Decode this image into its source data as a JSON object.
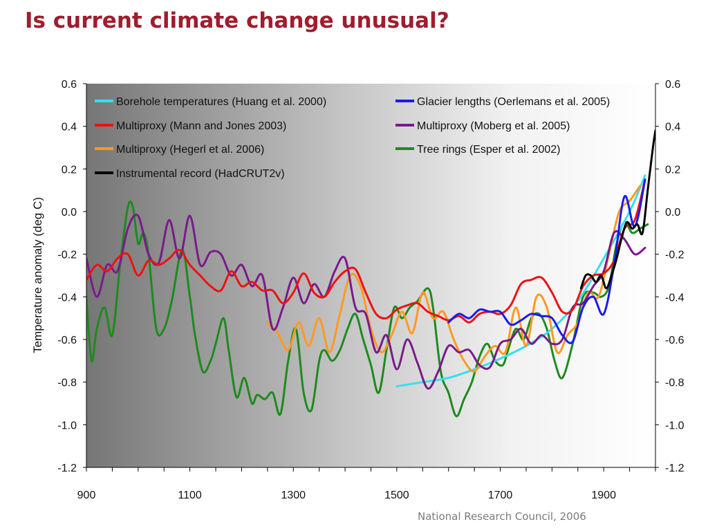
{
  "slide": {
    "title": "Is current climate change unusual?",
    "source": "National Research Council, 2006"
  },
  "chart_data": {
    "type": "line",
    "title": "",
    "xlabel": "",
    "ylabel": "Temperature anomaly (deg C)",
    "xlim": [
      900,
      2000
    ],
    "ylim": [
      -1.2,
      0.6
    ],
    "x_ticks": [
      "900",
      "1100",
      "1300",
      "1500",
      "1700",
      "1900"
    ],
    "x_tick_values": [
      900,
      1100,
      1300,
      1500,
      1700,
      1900
    ],
    "y_ticks": [
      "0.6",
      "0.4",
      "0.2",
      "0.0",
      "-0.2",
      "-0.4",
      "-0.6",
      "-0.8",
      "-1.0",
      "-1.2"
    ],
    "y_tick_values": [
      0.6,
      0.4,
      0.2,
      0.0,
      -0.2,
      -0.4,
      -0.6,
      -0.8,
      -1.0,
      -1.2
    ],
    "right_y_ticks": [
      "0.6",
      "0.4",
      "0.2",
      "0.0",
      "-0.2",
      "-0.4",
      "-0.6",
      "-0.8",
      "-1.0",
      "-1.2"
    ],
    "grid": false,
    "legend_position": "top",
    "background": "gradient dark-gray to white",
    "series": [
      {
        "name": "Borehole temperatures (Huang et al. 2000)",
        "color": "#33e0f0",
        "x": [
          1500,
          1550,
          1600,
          1650,
          1700,
          1750,
          1800,
          1850,
          1900,
          1950,
          1980
        ],
        "y": [
          -0.82,
          -0.8,
          -0.78,
          -0.74,
          -0.69,
          -0.63,
          -0.55,
          -0.42,
          -0.22,
          0.0,
          0.17
        ]
      },
      {
        "name": "Glacier lengths (Oerlemans et al. 2005)",
        "color": "#1a1aee",
        "x": [
          1600,
          1620,
          1640,
          1660,
          1680,
          1700,
          1720,
          1740,
          1760,
          1780,
          1800,
          1820,
          1840,
          1860,
          1880,
          1900,
          1920,
          1940,
          1960,
          1980
        ],
        "y": [
          -0.52,
          -0.48,
          -0.5,
          -0.46,
          -0.47,
          -0.47,
          -0.53,
          -0.51,
          -0.48,
          -0.49,
          -0.5,
          -0.58,
          -0.61,
          -0.45,
          -0.4,
          -0.48,
          -0.25,
          0.07,
          -0.07,
          0.15
        ]
      },
      {
        "name": "Multiproxy (Mann and Jones 2003)",
        "color": "#ee1111",
        "x": [
          900,
          920,
          940,
          960,
          980,
          1000,
          1020,
          1040,
          1060,
          1080,
          1100,
          1120,
          1140,
          1160,
          1180,
          1200,
          1220,
          1240,
          1260,
          1280,
          1300,
          1320,
          1340,
          1360,
          1380,
          1400,
          1420,
          1440,
          1460,
          1480,
          1500,
          1520,
          1540,
          1560,
          1580,
          1600,
          1620,
          1640,
          1660,
          1680,
          1700,
          1720,
          1740,
          1760,
          1780,
          1800,
          1820,
          1840,
          1860,
          1880,
          1900,
          1920,
          1940,
          1960,
          1980
        ],
        "y": [
          -0.32,
          -0.25,
          -0.28,
          -0.22,
          -0.2,
          -0.3,
          -0.23,
          -0.25,
          -0.22,
          -0.18,
          -0.25,
          -0.3,
          -0.35,
          -0.37,
          -0.28,
          -0.35,
          -0.33,
          -0.37,
          -0.37,
          -0.43,
          -0.38,
          -0.29,
          -0.38,
          -0.4,
          -0.33,
          -0.28,
          -0.27,
          -0.38,
          -0.48,
          -0.5,
          -0.46,
          -0.44,
          -0.43,
          -0.47,
          -0.49,
          -0.51,
          -0.49,
          -0.52,
          -0.48,
          -0.47,
          -0.48,
          -0.44,
          -0.34,
          -0.32,
          -0.31,
          -0.38,
          -0.47,
          -0.46,
          -0.35,
          -0.3,
          -0.29,
          -0.23,
          -0.08,
          -0.04,
          0.15
        ]
      },
      {
        "name": "Multiproxy (Moberg et al. 2005)",
        "color": "#7a1a8a",
        "x": [
          900,
          920,
          940,
          960,
          980,
          1000,
          1020,
          1040,
          1060,
          1080,
          1100,
          1120,
          1140,
          1160,
          1180,
          1200,
          1220,
          1240,
          1260,
          1280,
          1300,
          1320,
          1340,
          1360,
          1380,
          1400,
          1420,
          1440,
          1460,
          1480,
          1500,
          1520,
          1540,
          1560,
          1580,
          1600,
          1620,
          1640,
          1660,
          1680,
          1700,
          1720,
          1740,
          1760,
          1780,
          1800,
          1820,
          1840,
          1860,
          1880,
          1900,
          1920,
          1940,
          1960,
          1980
        ],
        "y": [
          -0.22,
          -0.4,
          -0.25,
          -0.28,
          -0.08,
          -0.02,
          -0.2,
          -0.24,
          -0.04,
          -0.22,
          -0.02,
          -0.25,
          -0.19,
          -0.2,
          -0.3,
          -0.25,
          -0.35,
          -0.3,
          -0.55,
          -0.45,
          -0.31,
          -0.43,
          -0.34,
          -0.4,
          -0.28,
          -0.22,
          -0.45,
          -0.48,
          -0.66,
          -0.58,
          -0.74,
          -0.6,
          -0.71,
          -0.83,
          -0.75,
          -0.63,
          -0.66,
          -0.65,
          -0.72,
          -0.73,
          -0.62,
          -0.6,
          -0.55,
          -0.62,
          -0.58,
          -0.62,
          -0.6,
          -0.45,
          -0.43,
          -0.35,
          -0.28,
          -0.1,
          -0.13,
          -0.2,
          -0.17
        ]
      },
      {
        "name": "Multiproxy (Hegerl et al. 2006)",
        "color": "#ff9922",
        "x": [
          1250,
          1270,
          1290,
          1310,
          1330,
          1350,
          1370,
          1390,
          1410,
          1430,
          1450,
          1470,
          1490,
          1510,
          1530,
          1550,
          1570,
          1590,
          1610,
          1630,
          1650,
          1670,
          1690,
          1710,
          1730,
          1750,
          1770,
          1790,
          1810,
          1830,
          1850,
          1870,
          1890,
          1910,
          1930,
          1950,
          1970
        ],
        "y": [
          -0.52,
          -0.57,
          -0.65,
          -0.52,
          -0.63,
          -0.5,
          -0.66,
          -0.48,
          -0.3,
          -0.35,
          -0.55,
          -0.66,
          -0.58,
          -0.47,
          -0.57,
          -0.38,
          -0.5,
          -0.47,
          -0.6,
          -0.7,
          -0.75,
          -0.68,
          -0.63,
          -0.66,
          -0.45,
          -0.63,
          -0.4,
          -0.45,
          -0.66,
          -0.58,
          -0.52,
          -0.38,
          -0.4,
          -0.2,
          0.0,
          0.05,
          0.12
        ]
      },
      {
        "name": "Tree rings (Esper et al. 2002)",
        "color": "#1e8a1e",
        "x": [
          900,
          910,
          920,
          935,
          950,
          965,
          980,
          990,
          1000,
          1010,
          1020,
          1035,
          1050,
          1065,
          1085,
          1100,
          1110,
          1125,
          1140,
          1150,
          1165,
          1175,
          1190,
          1205,
          1220,
          1230,
          1245,
          1260,
          1275,
          1290,
          1305,
          1320,
          1335,
          1350,
          1360,
          1375,
          1390,
          1405,
          1420,
          1435,
          1450,
          1465,
          1480,
          1495,
          1510,
          1525,
          1540,
          1560,
          1570,
          1585,
          1600,
          1615,
          1630,
          1645,
          1660,
          1675,
          1690,
          1705,
          1715,
          1730,
          1745,
          1760,
          1775,
          1790,
          1805,
          1820,
          1840,
          1860,
          1880,
          1895,
          1910,
          1925,
          1940,
          1955,
          1970,
          1985
        ],
        "y": [
          -0.4,
          -0.7,
          -0.55,
          -0.45,
          -0.58,
          -0.25,
          0.02,
          0.02,
          -0.15,
          -0.1,
          -0.2,
          -0.55,
          -0.55,
          -0.42,
          -0.18,
          -0.4,
          -0.58,
          -0.75,
          -0.7,
          -0.62,
          -0.5,
          -0.65,
          -0.87,
          -0.78,
          -0.9,
          -0.86,
          -0.88,
          -0.85,
          -0.95,
          -0.7,
          -0.55,
          -0.85,
          -0.93,
          -0.7,
          -0.65,
          -0.7,
          -0.65,
          -0.55,
          -0.48,
          -0.6,
          -0.72,
          -0.85,
          -0.65,
          -0.45,
          -0.5,
          -0.45,
          -0.42,
          -0.36,
          -0.45,
          -0.75,
          -0.85,
          -0.96,
          -0.88,
          -0.8,
          -0.68,
          -0.62,
          -0.7,
          -0.72,
          -0.65,
          -0.55,
          -0.6,
          -0.5,
          -0.48,
          -0.55,
          -0.7,
          -0.78,
          -0.62,
          -0.4,
          -0.38,
          -0.4,
          -0.35,
          -0.15,
          -0.05,
          -0.1,
          -0.08,
          -0.06
        ]
      },
      {
        "name": "Instrumental record (HadCRUT2v)",
        "color": "#000000",
        "x": [
          1856,
          1865,
          1875,
          1885,
          1895,
          1905,
          1915,
          1925,
          1935,
          1945,
          1955,
          1965,
          1975,
          1985,
          1995,
          2000
        ],
        "y": [
          -0.36,
          -0.3,
          -0.3,
          -0.33,
          -0.3,
          -0.36,
          -0.3,
          -0.22,
          -0.12,
          -0.05,
          -0.08,
          -0.06,
          -0.1,
          0.1,
          0.3,
          0.38
        ]
      }
    ]
  }
}
